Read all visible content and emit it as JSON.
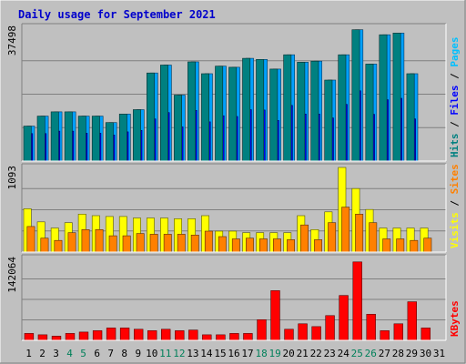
{
  "chart_data": {
    "type": "bar",
    "title": "Daily usage for September 2021",
    "days": [
      "1",
      "2",
      "3",
      "4",
      "5",
      "6",
      "7",
      "8",
      "9",
      "10",
      "11",
      "12",
      "13",
      "14",
      "15",
      "16",
      "17",
      "18",
      "19",
      "20",
      "21",
      "22",
      "23",
      "24",
      "25",
      "26",
      "27",
      "28",
      "29",
      "30",
      "31"
    ],
    "weekend_days": [
      "4",
      "5",
      "11",
      "12",
      "18",
      "19",
      "25",
      "26"
    ],
    "panels": [
      {
        "id": "top",
        "ymax_label": "37498",
        "ymax": 37498,
        "series_names": [
          "Hits",
          "Files",
          "Pages"
        ],
        "series": [
          {
            "name": "Hits",
            "color": "#00a0ff",
            "values": [
              9800,
              12600,
              13800,
              13800,
              12600,
              12600,
              10800,
              13200,
              14400,
              24700,
              26900,
              18500,
              27800,
              24500,
              26600,
              26300,
              28800,
              28500,
              25800,
              29800,
              27700,
              28000,
              22700,
              29800,
              36800,
              27200,
              35400,
              35900,
              24500,
              null,
              null
            ]
          },
          {
            "name": "Files",
            "color": "#0000ff",
            "values": [
              7700,
              7700,
              8400,
              8400,
              7800,
              7800,
              7300,
              8200,
              8600,
              11800,
              13600,
              9600,
              14200,
              11000,
              12700,
              12500,
              14400,
              14300,
              11400,
              15600,
              13200,
              13200,
              12100,
              15900,
              19700,
              13100,
              17200,
              17600,
              11800,
              null,
              null
            ]
          },
          {
            "name": "Pages",
            "color": "#00e0c0",
            "values": [
              9800,
              12600,
              13800,
              13800,
              12600,
              12600,
              10800,
              13200,
              14400,
              24700,
              26900,
              18500,
              27800,
              24500,
              26600,
              26300,
              28800,
              28500,
              25800,
              29800,
              27700,
              28000,
              22700,
              29800,
              36800,
              27200,
              35400,
              35900,
              24500,
              null,
              null
            ]
          }
        ]
      },
      {
        "id": "mid",
        "ymax_label": "1093",
        "ymax": 1093,
        "series_names": [
          "Visits",
          "Sites"
        ],
        "series": [
          {
            "name": "Visits",
            "color": "#ffff00",
            "values": [
              560,
              390,
              310,
              380,
              490,
              470,
              460,
              460,
              440,
              440,
              440,
              430,
              430,
              470,
              270,
              270,
              250,
              250,
              250,
              250,
              470,
              290,
              520,
              1093,
              820,
              550,
              310,
              310,
              310,
              310,
              null
            ]
          },
          {
            "name": "Sites",
            "color": "#ff8000",
            "values": [
              330,
              180,
              150,
              250,
              290,
              290,
              210,
              210,
              240,
              230,
              230,
              230,
              220,
              270,
              200,
              170,
              180,
              170,
              170,
              160,
              350,
              160,
              380,
              580,
              490,
              380,
              170,
              170,
              150,
              180,
              null
            ]
          }
        ]
      },
      {
        "id": "bot",
        "ymax_label": "142064",
        "ymax": 142064,
        "series_names": [
          "KBytes"
        ],
        "series": [
          {
            "name": "KBytes",
            "color": "#ff0000",
            "values": [
              12000,
              9600,
              7200,
              12000,
              14400,
              16800,
              21500,
              21500,
              19200,
              16800,
              19200,
              16800,
              17900,
              9600,
              9600,
              12000,
              12000,
              35800,
              86200,
              19200,
              28700,
              23900,
              43000,
              77800,
              136000,
              45300,
              16800,
              28700,
              67000,
              21500,
              null
            ]
          }
        ]
      }
    ]
  }
}
